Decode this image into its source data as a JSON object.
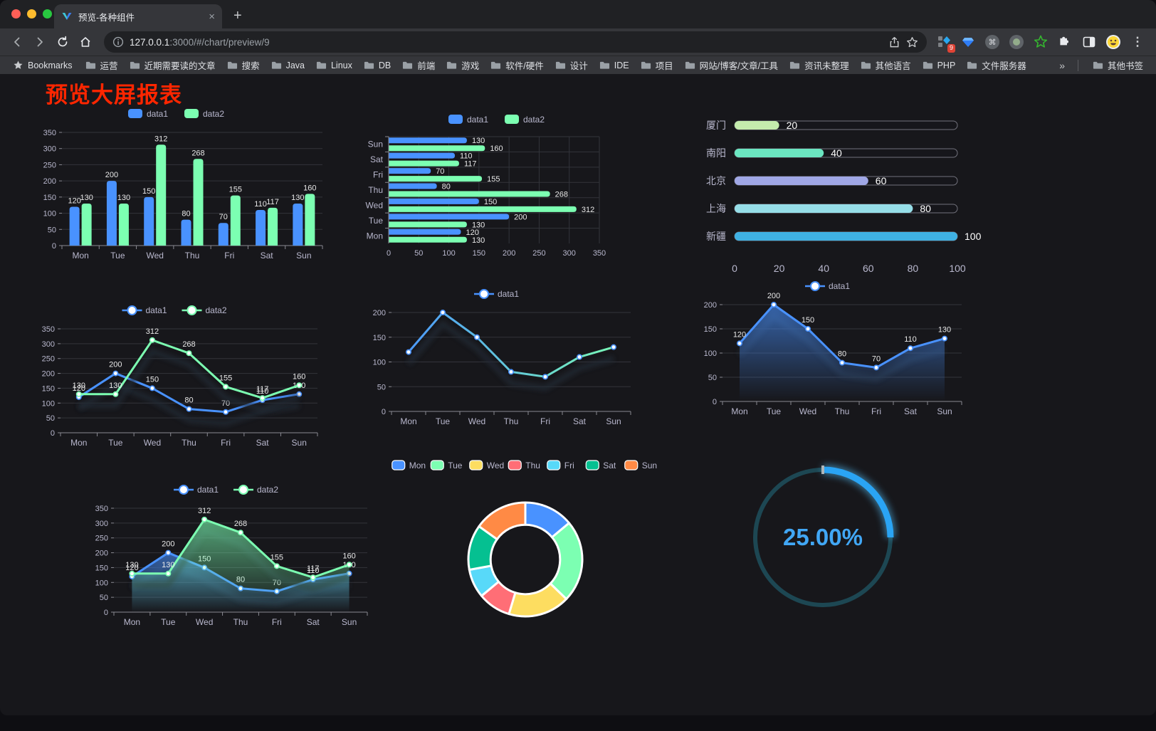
{
  "browser": {
    "tab": {
      "title": "预览-各种组件",
      "close_glyph": "×"
    },
    "new_tab_glyph": "+",
    "url": {
      "domain": "127.0.0.1",
      "rest": ":3000/#/chart/preview/9"
    },
    "extensions_badge": "9",
    "menu_glyph": "⋮",
    "bookmarks_bar": {
      "star_label": "Bookmarks",
      "folders": [
        "运营",
        "近期需要读的文章",
        "搜索",
        "Java",
        "Linux",
        "DB",
        "前端",
        "游戏",
        "软件/硬件",
        "设计",
        "IDE",
        "项目",
        "网站/博客/文章/工具",
        "资讯未整理",
        "其他语言",
        "PHP",
        "文件服务器"
      ],
      "overflow_glyph": "»",
      "other_bookmarks": "其他书签"
    }
  },
  "page": {
    "title": "预览大屏报表",
    "title_color": "#ff2600"
  },
  "chart_data": [
    {
      "id": "bar-vertical",
      "type": "bar",
      "categories": [
        "Mon",
        "Tue",
        "Wed",
        "Thu",
        "Fri",
        "Sat",
        "Sun"
      ],
      "series": [
        {
          "name": "data1",
          "color": "#4992ff",
          "values": [
            120,
            200,
            150,
            80,
            70,
            110,
            130
          ]
        },
        {
          "name": "data2",
          "color": "#7cffb2",
          "values": [
            130,
            130,
            312,
            268,
            155,
            117,
            160
          ]
        }
      ],
      "ylim": [
        0,
        350
      ],
      "ystep": 50,
      "legend_position": "top",
      "grid": true,
      "labels": true
    },
    {
      "id": "bar-horizontal",
      "type": "bar-horizontal",
      "categories": [
        "Mon",
        "Tue",
        "Wed",
        "Thu",
        "Fri",
        "Sat",
        "Sun"
      ],
      "display_order": "reversed-top-to-bottom",
      "series": [
        {
          "name": "data1",
          "color": "#4992ff",
          "values": [
            120,
            200,
            150,
            80,
            70,
            110,
            130
          ]
        },
        {
          "name": "data2",
          "color": "#7cffb2",
          "values": [
            130,
            130,
            312,
            268,
            155,
            117,
            160
          ]
        }
      ],
      "xlim": [
        0,
        350
      ],
      "xstep": 50,
      "legend_position": "top",
      "grid": true,
      "labels": true
    },
    {
      "id": "progress",
      "type": "bar-horizontal-progress",
      "categories": [
        "厦门",
        "南阳",
        "北京",
        "上海",
        "新疆"
      ],
      "values": [
        20,
        40,
        60,
        80,
        100
      ],
      "colors": [
        "#c4ebad",
        "#6be6c1",
        "#a0a7e6",
        "#96dee8",
        "#3fb1e3"
      ],
      "xlim": [
        0,
        100
      ],
      "xticks": [
        0,
        20,
        40,
        60,
        80,
        100
      ],
      "labels": true
    },
    {
      "id": "line-two",
      "type": "line",
      "categories": [
        "Mon",
        "Tue",
        "Wed",
        "Thu",
        "Fri",
        "Sat",
        "Sun"
      ],
      "series": [
        {
          "name": "data1",
          "color": "#4992ff",
          "values": [
            120,
            200,
            150,
            80,
            70,
            110,
            130
          ]
        },
        {
          "name": "data2",
          "color": "#7cffb2",
          "values": [
            130,
            130,
            312,
            268,
            155,
            117,
            160
          ]
        }
      ],
      "ylim": [
        0,
        350
      ],
      "ystep": 50,
      "legend_position": "top",
      "grid": true,
      "labels": true
    },
    {
      "id": "line-gradient",
      "type": "line-gradient",
      "categories": [
        "Mon",
        "Tue",
        "Wed",
        "Thu",
        "Fri",
        "Sat",
        "Sun"
      ],
      "series": [
        {
          "name": "data1",
          "color_start": "#4992ff",
          "color_end": "#7cffb2",
          "values": [
            120,
            200,
            150,
            80,
            70,
            110,
            130
          ]
        }
      ],
      "ylim": [
        0,
        200
      ],
      "ystep": 50,
      "legend_position": "top",
      "grid": true,
      "labels": false
    },
    {
      "id": "area-single",
      "type": "area",
      "categories": [
        "Mon",
        "Tue",
        "Wed",
        "Thu",
        "Fri",
        "Sat",
        "Sun"
      ],
      "series": [
        {
          "name": "data1",
          "color": "#4992ff",
          "values": [
            120,
            200,
            150,
            80,
            70,
            110,
            130
          ]
        }
      ],
      "ylim": [
        0,
        200
      ],
      "ystep": 50,
      "legend_position": "top",
      "grid": true,
      "labels": true
    },
    {
      "id": "area-two",
      "type": "area",
      "categories": [
        "Mon",
        "Tue",
        "Wed",
        "Thu",
        "Fri",
        "Sat",
        "Sun"
      ],
      "series": [
        {
          "name": "data1",
          "color": "#4992ff",
          "values": [
            120,
            200,
            150,
            80,
            70,
            110,
            130
          ]
        },
        {
          "name": "data2",
          "color": "#7cffb2",
          "values": [
            130,
            130,
            312,
            268,
            155,
            117,
            160
          ]
        }
      ],
      "ylim": [
        0,
        350
      ],
      "ystep": 50,
      "legend_position": "top",
      "grid": true,
      "labels": true
    },
    {
      "id": "donut",
      "type": "pie",
      "categories": [
        "Mon",
        "Tue",
        "Wed",
        "Thu",
        "Fri",
        "Sat",
        "Sun"
      ],
      "values": [
        120,
        200,
        150,
        80,
        70,
        110,
        130
      ],
      "colors": [
        "#4992ff",
        "#7cffb2",
        "#fddd60",
        "#ff6e76",
        "#58d9f9",
        "#05c091",
        "#ff8a45"
      ],
      "inner_radius_ratio": 0.61,
      "border_color": "#ffffff",
      "legend_position": "top"
    },
    {
      "id": "gauge",
      "type": "gauge",
      "value": 25,
      "label": "25.00%",
      "color": "#2aa4f4",
      "track_color": "#1d4753",
      "text_color": "#41a7f5"
    }
  ]
}
